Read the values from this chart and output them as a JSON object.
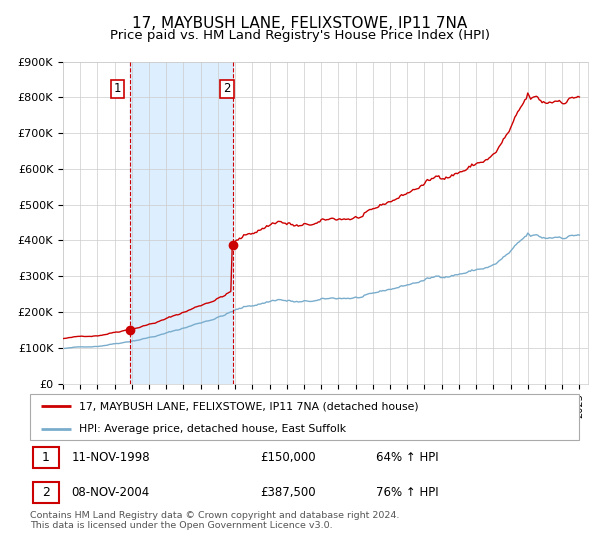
{
  "title": "17, MAYBUSH LANE, FELIXSTOWE, IP11 7NA",
  "subtitle": "Price paid vs. HM Land Registry's House Price Index (HPI)",
  "title_fontsize": 11,
  "subtitle_fontsize": 9.5,
  "ylim": [
    0,
    900000
  ],
  "yticks": [
    0,
    100000,
    200000,
    300000,
    400000,
    500000,
    600000,
    700000,
    800000,
    900000
  ],
  "ytick_labels": [
    "£0",
    "£100K",
    "£200K",
    "£300K",
    "£400K",
    "£500K",
    "£600K",
    "£700K",
    "£800K",
    "£900K"
  ],
  "red_line_color": "#cc0000",
  "blue_line_color": "#7aadcc",
  "marker_color": "#cc0000",
  "shade_color": "#ddeeff",
  "vline_color": "#cc0000",
  "purchase1_year": 1998.87,
  "purchase1_value": 150000,
  "purchase2_year": 2004.87,
  "purchase2_value": 387500,
  "legend_label_red": "17, MAYBUSH LANE, FELIXSTOWE, IP11 7NA (detached house)",
  "legend_label_blue": "HPI: Average price, detached house, East Suffolk",
  "table_row1": [
    "1",
    "11-NOV-1998",
    "£150,000",
    "64% ↑ HPI"
  ],
  "table_row2": [
    "2",
    "08-NOV-2004",
    "£387,500",
    "76% ↑ HPI"
  ],
  "footer": "Contains HM Land Registry data © Crown copyright and database right 2024.\nThis data is licensed under the Open Government Licence v3.0.",
  "background_color": "#ffffff",
  "grid_color": "#cccccc"
}
